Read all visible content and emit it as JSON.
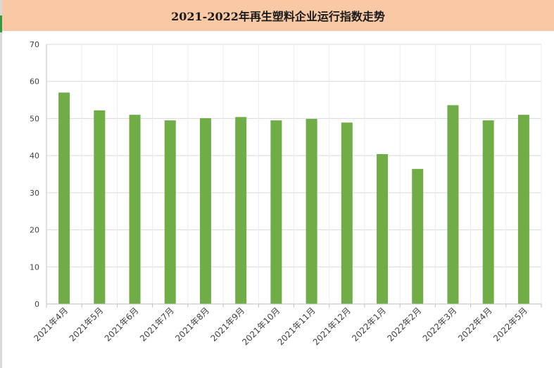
{
  "chart_data": {
    "type": "bar",
    "title": "2021-2022年再生塑料企业运行指数走势",
    "categories": [
      "2021年4月",
      "2021年5月",
      "2021年6月",
      "2021年7月",
      "2021年8月",
      "2021年9月",
      "2021年10月",
      "2021年11月",
      "2021年12月",
      "2022年1月",
      "2022年2月",
      "2022年3月",
      "2022年4月",
      "2022年5月"
    ],
    "values": [
      57.0,
      52.2,
      51.0,
      49.5,
      50.1,
      50.4,
      49.5,
      49.9,
      48.9,
      40.4,
      36.4,
      53.6,
      49.5,
      51.0
    ],
    "ylim": [
      0,
      70
    ],
    "yticks": [
      0,
      10,
      20,
      30,
      40,
      50,
      60,
      70
    ],
    "xlabel": "",
    "ylabel": "",
    "grid": true,
    "bar_color": "#70ad47",
    "grid_color": "#d9d9d9"
  }
}
